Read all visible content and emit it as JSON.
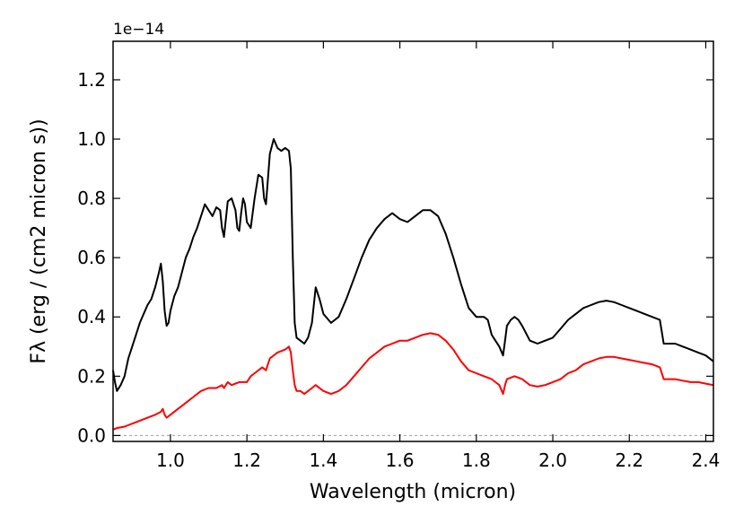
{
  "chart_data": {
    "type": "line",
    "offset_text": "1e−14",
    "xlabel": "Wavelength (micron)",
    "ylabel": "Fλ (erg / (cm2 micron s))",
    "xlim": [
      0.85,
      2.42
    ],
    "ylim": [
      -0.02,
      1.33
    ],
    "grid": false,
    "legend": "none",
    "x_ticks": [
      {
        "value": 1.0,
        "label": "1.0"
      },
      {
        "value": 1.2,
        "label": "1.2"
      },
      {
        "value": 1.4,
        "label": "1.4"
      },
      {
        "value": 1.6,
        "label": "1.6"
      },
      {
        "value": 1.8,
        "label": "1.8"
      },
      {
        "value": 2.0,
        "label": "2.0"
      },
      {
        "value": 2.2,
        "label": "2.2"
      },
      {
        "value": 2.4,
        "label": "2.4"
      }
    ],
    "y_ticks": [
      {
        "value": 0.0,
        "label": "0.0"
      },
      {
        "value": 0.2,
        "label": "0.2"
      },
      {
        "value": 0.4,
        "label": "0.4"
      },
      {
        "value": 0.6,
        "label": "0.6"
      },
      {
        "value": 0.8,
        "label": "0.8"
      },
      {
        "value": 1.0,
        "label": "1.0"
      },
      {
        "value": 1.2,
        "label": "1.2"
      }
    ],
    "reference_line": {
      "y": 0.0,
      "style": "dashed",
      "color": "#999999"
    },
    "series": [
      {
        "color": "#000000",
        "points": [
          [
            0.85,
            0.22
          ],
          [
            0.855,
            0.18
          ],
          [
            0.86,
            0.15
          ],
          [
            0.87,
            0.17
          ],
          [
            0.88,
            0.2
          ],
          [
            0.89,
            0.26
          ],
          [
            0.9,
            0.3
          ],
          [
            0.91,
            0.34
          ],
          [
            0.92,
            0.38
          ],
          [
            0.93,
            0.41
          ],
          [
            0.94,
            0.44
          ],
          [
            0.95,
            0.46
          ],
          [
            0.96,
            0.5
          ],
          [
            0.97,
            0.55
          ],
          [
            0.975,
            0.58
          ],
          [
            0.98,
            0.52
          ],
          [
            0.985,
            0.42
          ],
          [
            0.99,
            0.37
          ],
          [
            0.995,
            0.38
          ],
          [
            1.0,
            0.42
          ],
          [
            1.01,
            0.47
          ],
          [
            1.02,
            0.5
          ],
          [
            1.03,
            0.55
          ],
          [
            1.04,
            0.6
          ],
          [
            1.05,
            0.63
          ],
          [
            1.06,
            0.67
          ],
          [
            1.07,
            0.7
          ],
          [
            1.08,
            0.74
          ],
          [
            1.09,
            0.78
          ],
          [
            1.1,
            0.76
          ],
          [
            1.11,
            0.74
          ],
          [
            1.12,
            0.77
          ],
          [
            1.13,
            0.76
          ],
          [
            1.135,
            0.7
          ],
          [
            1.14,
            0.67
          ],
          [
            1.145,
            0.73
          ],
          [
            1.15,
            0.79
          ],
          [
            1.16,
            0.8
          ],
          [
            1.17,
            0.76
          ],
          [
            1.175,
            0.7
          ],
          [
            1.18,
            0.69
          ],
          [
            1.185,
            0.75
          ],
          [
            1.19,
            0.8
          ],
          [
            1.195,
            0.78
          ],
          [
            1.2,
            0.72
          ],
          [
            1.21,
            0.7
          ],
          [
            1.22,
            0.8
          ],
          [
            1.23,
            0.88
          ],
          [
            1.24,
            0.87
          ],
          [
            1.245,
            0.8
          ],
          [
            1.25,
            0.78
          ],
          [
            1.26,
            0.95
          ],
          [
            1.27,
            1.0
          ],
          [
            1.28,
            0.97
          ],
          [
            1.29,
            0.96
          ],
          [
            1.3,
            0.97
          ],
          [
            1.31,
            0.96
          ],
          [
            1.315,
            0.9
          ],
          [
            1.32,
            0.6
          ],
          [
            1.325,
            0.38
          ],
          [
            1.33,
            0.33
          ],
          [
            1.34,
            0.32
          ],
          [
            1.35,
            0.31
          ],
          [
            1.36,
            0.33
          ],
          [
            1.37,
            0.38
          ],
          [
            1.38,
            0.5
          ],
          [
            1.39,
            0.46
          ],
          [
            1.4,
            0.41
          ],
          [
            1.42,
            0.38
          ],
          [
            1.44,
            0.4
          ],
          [
            1.46,
            0.46
          ],
          [
            1.48,
            0.53
          ],
          [
            1.5,
            0.6
          ],
          [
            1.52,
            0.66
          ],
          [
            1.54,
            0.7
          ],
          [
            1.56,
            0.73
          ],
          [
            1.58,
            0.75
          ],
          [
            1.6,
            0.73
          ],
          [
            1.62,
            0.72
          ],
          [
            1.64,
            0.74
          ],
          [
            1.66,
            0.76
          ],
          [
            1.68,
            0.76
          ],
          [
            1.7,
            0.74
          ],
          [
            1.72,
            0.68
          ],
          [
            1.74,
            0.6
          ],
          [
            1.76,
            0.51
          ],
          [
            1.78,
            0.43
          ],
          [
            1.8,
            0.4
          ],
          [
            1.82,
            0.4
          ],
          [
            1.83,
            0.39
          ],
          [
            1.84,
            0.34
          ],
          [
            1.85,
            0.32
          ],
          [
            1.86,
            0.3
          ],
          [
            1.87,
            0.27
          ],
          [
            1.875,
            0.32
          ],
          [
            1.88,
            0.37
          ],
          [
            1.89,
            0.39
          ],
          [
            1.9,
            0.4
          ],
          [
            1.91,
            0.39
          ],
          [
            1.92,
            0.37
          ],
          [
            1.94,
            0.32
          ],
          [
            1.96,
            0.31
          ],
          [
            1.98,
            0.32
          ],
          [
            2.0,
            0.33
          ],
          [
            2.02,
            0.36
          ],
          [
            2.04,
            0.39
          ],
          [
            2.06,
            0.41
          ],
          [
            2.08,
            0.43
          ],
          [
            2.1,
            0.44
          ],
          [
            2.12,
            0.45
          ],
          [
            2.14,
            0.455
          ],
          [
            2.16,
            0.45
          ],
          [
            2.18,
            0.44
          ],
          [
            2.2,
            0.43
          ],
          [
            2.22,
            0.42
          ],
          [
            2.24,
            0.41
          ],
          [
            2.26,
            0.4
          ],
          [
            2.28,
            0.39
          ],
          [
            2.285,
            0.35
          ],
          [
            2.29,
            0.31
          ],
          [
            2.3,
            0.31
          ],
          [
            2.32,
            0.31
          ],
          [
            2.34,
            0.3
          ],
          [
            2.36,
            0.29
          ],
          [
            2.38,
            0.28
          ],
          [
            2.4,
            0.27
          ],
          [
            2.42,
            0.25
          ]
        ]
      },
      {
        "color": "#ff0000",
        "points": [
          [
            0.85,
            0.02
          ],
          [
            0.86,
            0.025
          ],
          [
            0.88,
            0.03
          ],
          [
            0.9,
            0.04
          ],
          [
            0.92,
            0.05
          ],
          [
            0.94,
            0.06
          ],
          [
            0.96,
            0.07
          ],
          [
            0.975,
            0.08
          ],
          [
            0.98,
            0.09
          ],
          [
            0.985,
            0.07
          ],
          [
            0.99,
            0.06
          ],
          [
            1.0,
            0.07
          ],
          [
            1.02,
            0.09
          ],
          [
            1.04,
            0.11
          ],
          [
            1.06,
            0.13
          ],
          [
            1.08,
            0.15
          ],
          [
            1.1,
            0.16
          ],
          [
            1.12,
            0.16
          ],
          [
            1.135,
            0.17
          ],
          [
            1.14,
            0.16
          ],
          [
            1.15,
            0.18
          ],
          [
            1.16,
            0.17
          ],
          [
            1.18,
            0.18
          ],
          [
            1.2,
            0.18
          ],
          [
            1.21,
            0.2
          ],
          [
            1.22,
            0.21
          ],
          [
            1.24,
            0.23
          ],
          [
            1.25,
            0.22
          ],
          [
            1.26,
            0.26
          ],
          [
            1.28,
            0.28
          ],
          [
            1.3,
            0.29
          ],
          [
            1.31,
            0.3
          ],
          [
            1.315,
            0.28
          ],
          [
            1.32,
            0.22
          ],
          [
            1.325,
            0.17
          ],
          [
            1.33,
            0.15
          ],
          [
            1.34,
            0.15
          ],
          [
            1.35,
            0.14
          ],
          [
            1.37,
            0.16
          ],
          [
            1.38,
            0.17
          ],
          [
            1.4,
            0.15
          ],
          [
            1.42,
            0.14
          ],
          [
            1.44,
            0.15
          ],
          [
            1.46,
            0.17
          ],
          [
            1.48,
            0.2
          ],
          [
            1.5,
            0.23
          ],
          [
            1.52,
            0.26
          ],
          [
            1.54,
            0.28
          ],
          [
            1.56,
            0.3
          ],
          [
            1.58,
            0.31
          ],
          [
            1.6,
            0.32
          ],
          [
            1.62,
            0.32
          ],
          [
            1.64,
            0.33
          ],
          [
            1.66,
            0.34
          ],
          [
            1.68,
            0.345
          ],
          [
            1.7,
            0.34
          ],
          [
            1.72,
            0.32
          ],
          [
            1.74,
            0.29
          ],
          [
            1.76,
            0.25
          ],
          [
            1.78,
            0.22
          ],
          [
            1.8,
            0.21
          ],
          [
            1.82,
            0.2
          ],
          [
            1.84,
            0.19
          ],
          [
            1.85,
            0.18
          ],
          [
            1.86,
            0.17
          ],
          [
            1.87,
            0.14
          ],
          [
            1.875,
            0.17
          ],
          [
            1.88,
            0.19
          ],
          [
            1.9,
            0.2
          ],
          [
            1.92,
            0.19
          ],
          [
            1.94,
            0.17
          ],
          [
            1.96,
            0.165
          ],
          [
            1.98,
            0.17
          ],
          [
            2.0,
            0.18
          ],
          [
            2.02,
            0.19
          ],
          [
            2.04,
            0.21
          ],
          [
            2.06,
            0.22
          ],
          [
            2.08,
            0.24
          ],
          [
            2.1,
            0.25
          ],
          [
            2.12,
            0.26
          ],
          [
            2.14,
            0.265
          ],
          [
            2.16,
            0.265
          ],
          [
            2.18,
            0.26
          ],
          [
            2.2,
            0.255
          ],
          [
            2.22,
            0.25
          ],
          [
            2.24,
            0.245
          ],
          [
            2.26,
            0.24
          ],
          [
            2.28,
            0.23
          ],
          [
            2.285,
            0.21
          ],
          [
            2.29,
            0.19
          ],
          [
            2.3,
            0.19
          ],
          [
            2.32,
            0.19
          ],
          [
            2.34,
            0.185
          ],
          [
            2.36,
            0.18
          ],
          [
            2.38,
            0.18
          ],
          [
            2.4,
            0.175
          ],
          [
            2.42,
            0.17
          ]
        ]
      }
    ]
  }
}
